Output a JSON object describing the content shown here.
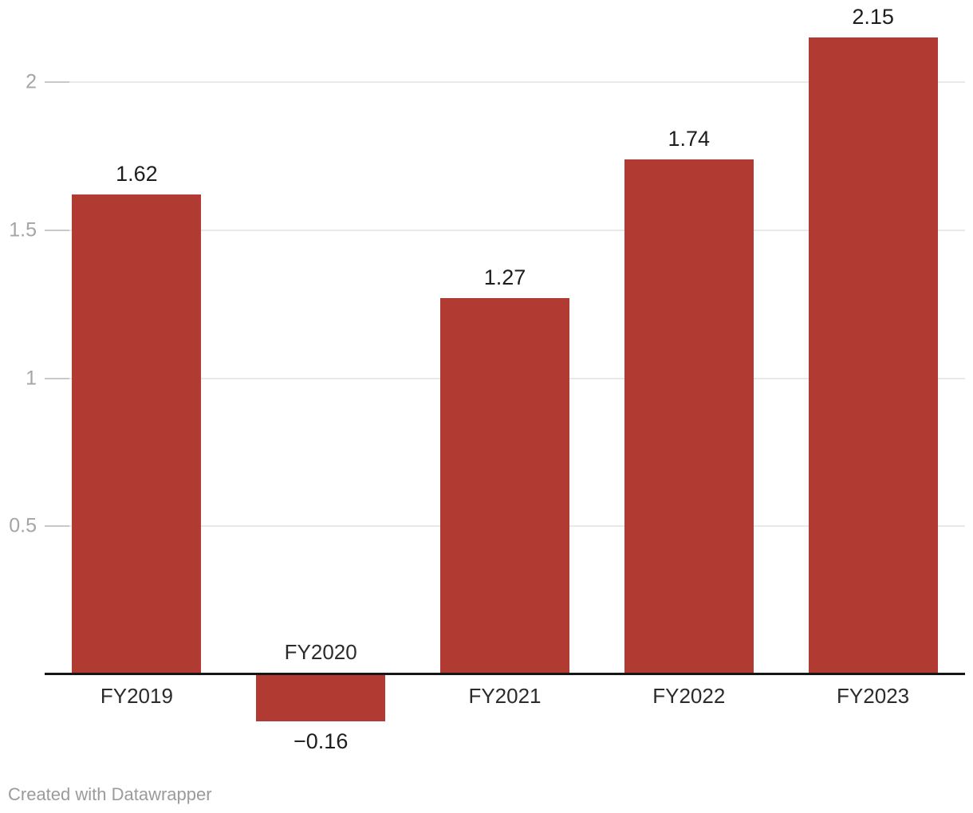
{
  "chart_data": {
    "type": "bar",
    "categories": [
      "FY2019",
      "FY2020",
      "FY2021",
      "FY2022",
      "FY2023"
    ],
    "values": [
      1.62,
      -0.16,
      1.27,
      1.74,
      2.15
    ],
    "value_labels": [
      "1.62",
      "−0.16",
      "1.27",
      "1.74",
      "2.15"
    ],
    "title": "",
    "xlabel": "",
    "ylabel": "",
    "ylim": [
      -0.47,
      2.28
    ],
    "yticks": [
      0.5,
      1,
      1.5,
      2
    ],
    "ytick_labels": [
      "0.5",
      "1",
      "1.5",
      "2"
    ],
    "grid": "horizontal",
    "legend_position": "none",
    "bar_color": "#b13b32",
    "baseline_value": 0
  },
  "footer": {
    "credit": "Created with Datawrapper"
  },
  "colors": {
    "bar": "#b13b32",
    "gridline": "#e9e9e9",
    "grid_tick": "#c9c9c9",
    "axis_label": "#a5a5a5",
    "value_label": "#1d1d1d",
    "category_label": "#2b2b2b",
    "baseline": "#161616",
    "footer": "#9b9b9b",
    "background": "#ffffff"
  }
}
